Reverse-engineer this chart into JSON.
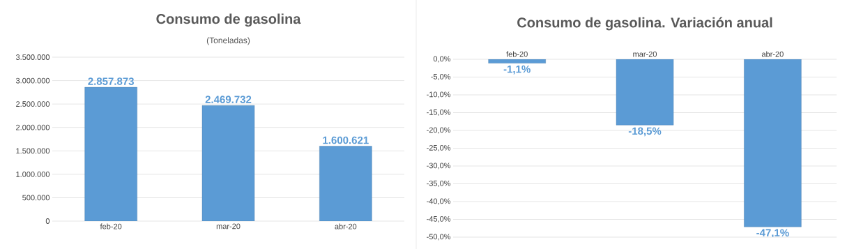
{
  "chart_data": [
    {
      "type": "bar",
      "title": "Consumo de gasolina",
      "subtitle": "(Toneladas)",
      "categories": [
        "feb-20",
        "mar-20",
        "abr-20"
      ],
      "values": [
        2857873,
        2469732,
        1600621
      ],
      "value_labels": [
        "2.857.873",
        "2.469.732",
        "1.600.621"
      ],
      "color": "#5b9bd5",
      "ylim": [
        0,
        3500000
      ],
      "yticks": [
        {
          "value": 0,
          "label": "0"
        },
        {
          "value": 500000,
          "label": "500.000"
        },
        {
          "value": 1000000,
          "label": "1.000.000"
        },
        {
          "value": 1500000,
          "label": "1.500.000"
        },
        {
          "value": 2000000,
          "label": "2.000.000"
        },
        {
          "value": 2500000,
          "label": "2.500.000"
        },
        {
          "value": 3000000,
          "label": "3.000.000"
        },
        {
          "value": 3500000,
          "label": "3.500.000"
        }
      ],
      "grid": "y"
    },
    {
      "type": "bar",
      "title": "Consumo de gasolina. Variación anual",
      "categories": [
        "feb-20",
        "mar-20",
        "abr-20"
      ],
      "values": [
        -1.1,
        -18.5,
        -47.1
      ],
      "value_labels": [
        "-1,1%",
        "-18,5%",
        "-47,1%"
      ],
      "color": "#5b9bd5",
      "ylim": [
        -50,
        0
      ],
      "yticks": [
        {
          "value": 0,
          "label": "0,0%"
        },
        {
          "value": -5,
          "label": "-5,0%"
        },
        {
          "value": -10,
          "label": "-10,0%"
        },
        {
          "value": -15,
          "label": "-15,0%"
        },
        {
          "value": -20,
          "label": "-20,0%"
        },
        {
          "value": -25,
          "label": "-25,0%"
        },
        {
          "value": -30,
          "label": "-30,0%"
        },
        {
          "value": -35,
          "label": "-35,0%"
        },
        {
          "value": -40,
          "label": "-40,0%"
        },
        {
          "value": -45,
          "label": "-45,0%"
        },
        {
          "value": -50,
          "label": "-50,0%"
        }
      ],
      "grid": "y"
    }
  ]
}
